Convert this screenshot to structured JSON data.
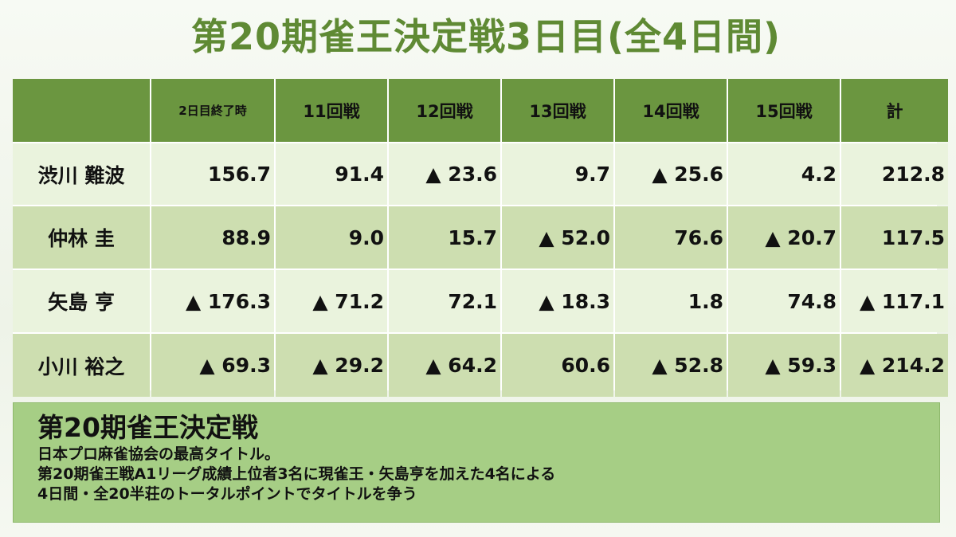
{
  "title": "第20期雀王決定戦3日目(全4日間)",
  "colors": {
    "title": "#5f8a34",
    "header_bg": "#6b9640",
    "row_light": "#eaf3dd",
    "row_mid": "#cddeb0",
    "info_bg": "#a6ce85"
  },
  "table": {
    "headers": [
      "",
      "2日目終了時",
      "11回戦",
      "12回戦",
      "13回戦",
      "14回戦",
      "15回戦",
      "計"
    ],
    "rows": [
      {
        "name": "渋川 難波",
        "values": [
          "156.7",
          "91.4",
          "▲ 23.6",
          "9.7",
          "▲ 25.6",
          "4.2",
          "212.8"
        ]
      },
      {
        "name": "仲林 圭",
        "values": [
          "88.9",
          "9.0",
          "15.7",
          "▲ 52.0",
          "76.6",
          "▲ 20.7",
          "117.5"
        ]
      },
      {
        "name": "矢島 亨",
        "values": [
          "▲ 176.3",
          "▲ 71.2",
          "72.1",
          "▲ 18.3",
          "1.8",
          "74.8",
          "▲ 117.1"
        ]
      },
      {
        "name": "小川 裕之",
        "values": [
          "▲ 69.3",
          "▲ 29.2",
          "▲ 64.2",
          "60.6",
          "▲ 52.8",
          "▲ 59.3",
          "▲ 214.2"
        ]
      }
    ]
  },
  "info": {
    "title": "第20期雀王決定戦",
    "lines": [
      "日本プロ麻雀協会の最高タイトル。",
      "第20期雀王戦A1リーグ成績上位者3名に現雀王・矢島亨を加えた4名による",
      "4日間・全20半荘のトータルポイントでタイトルを争う"
    ]
  }
}
